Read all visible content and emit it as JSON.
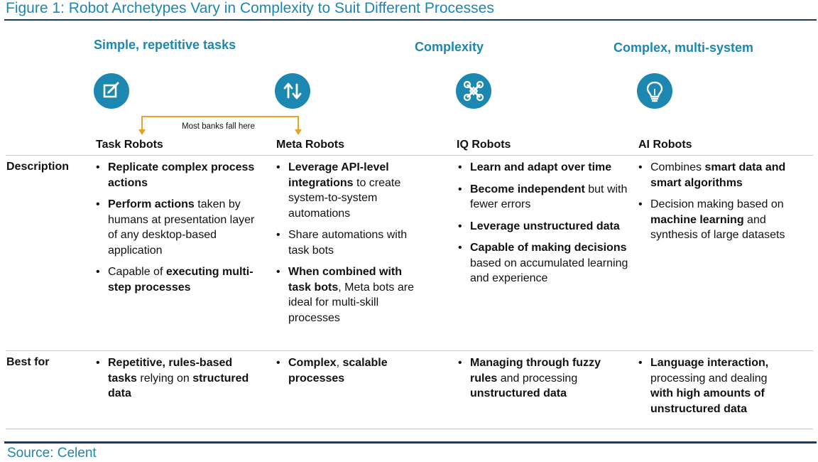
{
  "figure_title": "Figure 1: Robot Archetypes Vary in Complexity to Suit Different Processes",
  "categories": [
    {
      "label": "Simple, repetitive tasks"
    },
    {
      "label": "Complexity"
    },
    {
      "label": "Complex, multi-system"
    }
  ],
  "icons": [
    "edit-icon",
    "arrows-up-down-icon",
    "network-icon",
    "lightbulb-icon"
  ],
  "accent_color": "#1c87b0",
  "bracket_color": "#e8a22a",
  "bracket_note": "Most banks fall here",
  "columns": [
    {
      "name": "Task Robots"
    },
    {
      "name": "Meta Robots"
    },
    {
      "name": "IQ Robots"
    },
    {
      "name": "AI Robots"
    }
  ],
  "rows": {
    "description": {
      "label": "Description",
      "cells": [
        [
          [
            {
              "t": "Replicate complex process actions",
              "b": true
            }
          ],
          [
            {
              "t": "Perform actions",
              "b": true
            },
            {
              "t": " taken by humans at presentation layer of any desktop-based application",
              "b": false
            }
          ],
          [
            {
              "t": "Capable of ",
              "b": false
            },
            {
              "t": "executing multi-step processes",
              "b": true
            }
          ]
        ],
        [
          [
            {
              "t": "Leverage API-level integrations",
              "b": true
            },
            {
              "t": " to create system-to-system automations",
              "b": false
            }
          ],
          [
            {
              "t": "Share automations with task bots",
              "b": false
            }
          ],
          [
            {
              "t": "When combined with task bots",
              "b": true
            },
            {
              "t": ", Meta bots are ideal for multi-skill processes",
              "b": false
            }
          ]
        ],
        [
          [
            {
              "t": "Learn and adapt over time",
              "b": true
            }
          ],
          [
            {
              "t": "Become independent",
              "b": true
            },
            {
              "t": " but with fewer errors",
              "b": false
            }
          ],
          [
            {
              "t": "Leverage unstructured data",
              "b": true
            }
          ],
          [
            {
              "t": "Capable of making decisions",
              "b": true
            },
            {
              "t": " based on accumulated learning and experience",
              "b": false
            }
          ]
        ],
        [
          [
            {
              "t": "Combines ",
              "b": false
            },
            {
              "t": "smart data and smart algorithms",
              "b": true
            }
          ],
          [
            {
              "t": "Decision making based on ",
              "b": false
            },
            {
              "t": "machine learning",
              "b": true
            },
            {
              "t": " and synthesis of large datasets",
              "b": false
            }
          ]
        ]
      ]
    },
    "best_for": {
      "label": "Best for",
      "cells": [
        [
          [
            {
              "t": "Repetitive, rules-based tasks",
              "b": true
            },
            {
              "t": " relying on ",
              "b": false
            },
            {
              "t": "structured data",
              "b": true
            }
          ]
        ],
        [
          [
            {
              "t": "Complex",
              "b": true
            },
            {
              "t": ", ",
              "b": false
            },
            {
              "t": "scalable processes",
              "b": true
            }
          ]
        ],
        [
          [
            {
              "t": "Managing through fuzzy rules",
              "b": true
            },
            {
              "t": " and processing ",
              "b": false
            },
            {
              "t": "unstructured data",
              "b": true
            }
          ]
        ],
        [
          [
            {
              "t": "Language interaction,",
              "b": true
            },
            {
              "t": " processing and dealing ",
              "b": false
            },
            {
              "t": "with high amounts of unstructured data",
              "b": true
            }
          ]
        ]
      ]
    }
  },
  "source": "Source: Celent"
}
